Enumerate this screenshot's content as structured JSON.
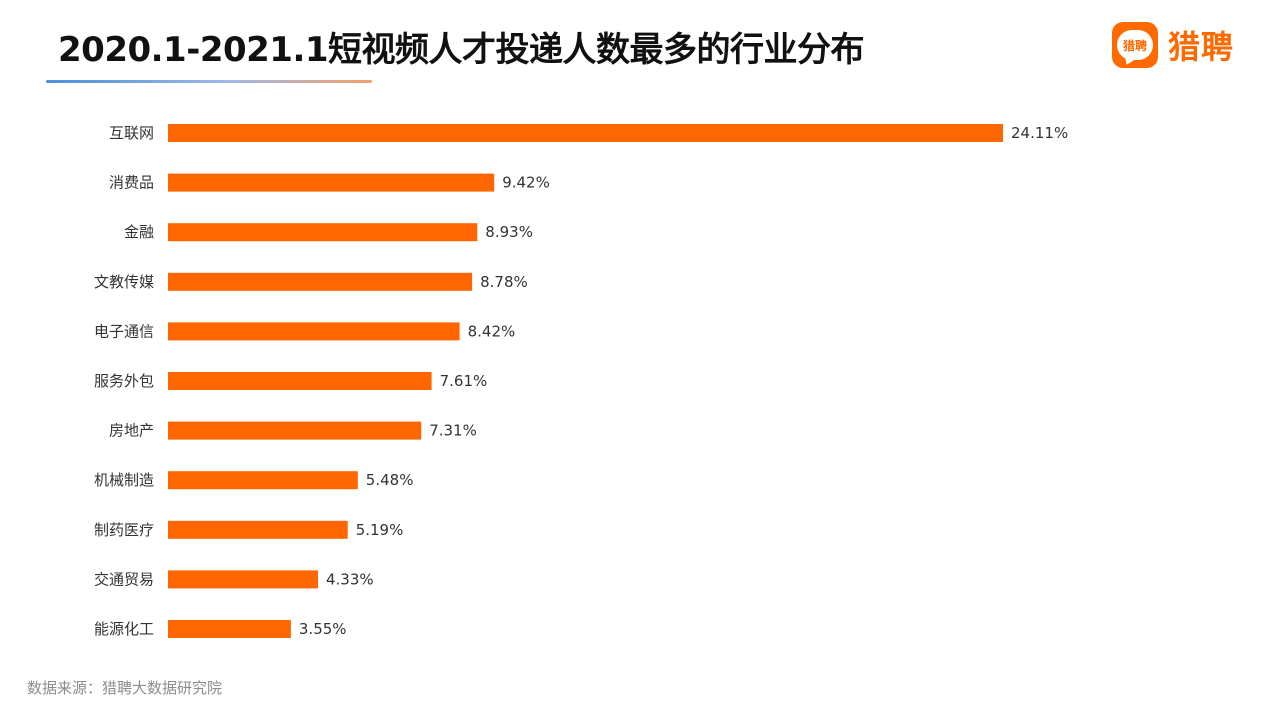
{
  "title": "2020.1-2021.1短视频人才投递人数最多的行业分布",
  "logo": {
    "badge_text": "猎聘",
    "wordmark": "猎聘",
    "brand_color": "#ff6a00"
  },
  "source": "数据来源：猎聘大数据研究院",
  "chart_data": {
    "type": "bar",
    "orientation": "horizontal",
    "title": "",
    "xlabel": "",
    "ylabel": "",
    "categories": [
      "互联网",
      "消费品",
      "金融",
      "文教传媒",
      "电子通信",
      "服务外包",
      "房地产",
      "机械制造",
      "制药医疗",
      "交通贸易",
      "能源化工"
    ],
    "values": [
      24.11,
      9.42,
      8.93,
      8.78,
      8.42,
      7.61,
      7.31,
      5.48,
      5.19,
      4.33,
      3.55
    ],
    "value_labels": [
      "24.11%",
      "9.42%",
      "8.93%",
      "8.78%",
      "8.42%",
      "7.61%",
      "7.31%",
      "5.48%",
      "5.19%",
      "4.33%",
      "3.55%"
    ],
    "unit": "%",
    "bar_color": "#ff6600",
    "grid": false,
    "legend": "none"
  }
}
